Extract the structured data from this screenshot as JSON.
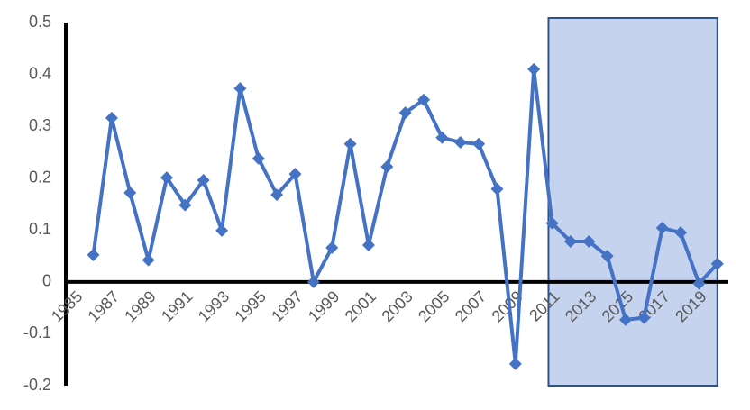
{
  "chart_data": {
    "type": "line",
    "x": [
      1985,
      1986,
      1987,
      1988,
      1989,
      1990,
      1991,
      1992,
      1993,
      1994,
      1995,
      1996,
      1997,
      1998,
      1999,
      2000,
      2001,
      2002,
      2003,
      2004,
      2005,
      2006,
      2007,
      2008,
      2009,
      2010,
      2011,
      2012,
      2013,
      2014,
      2015,
      2016,
      2017,
      2018,
      2019,
      2020
    ],
    "series": [
      {
        "color": "#4472c4",
        "values": [
          null,
          0.052,
          0.316,
          0.172,
          0.042,
          0.201,
          0.148,
          0.196,
          0.099,
          0.373,
          0.238,
          0.168,
          0.208,
          0.0,
          0.066,
          0.266,
          0.071,
          0.222,
          0.326,
          0.351,
          0.278,
          0.269,
          0.266,
          0.179,
          -0.158,
          0.41,
          0.113,
          0.078,
          0.078,
          0.05,
          -0.073,
          -0.069,
          0.104,
          0.095,
          -0.003,
          0.035
        ]
      }
    ],
    "xlim": [
      1984.5,
      2020.6
    ],
    "xticks": [
      1985,
      1987,
      1989,
      1991,
      1993,
      1995,
      1997,
      1999,
      2001,
      2003,
      2005,
      2007,
      2009,
      2011,
      2013,
      2015,
      2017,
      2019
    ],
    "ylim": [
      -0.2,
      0.5
    ],
    "yticks": [
      0.5,
      0.4,
      0.3,
      0.2,
      0.1,
      0,
      -0.1,
      -0.2
    ],
    "highlight_x": [
      2010.8,
      2020.0
    ],
    "highlight_color": "#c5d3ee",
    "highlight_border": "#2f528f",
    "grid": false
  }
}
